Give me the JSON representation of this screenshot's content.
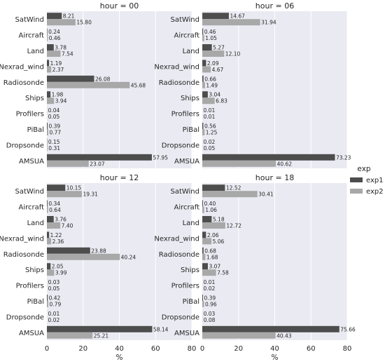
{
  "chart_data": {
    "type": "bar",
    "orientation": "horizontal",
    "facet_label": "hour",
    "xlabel": "%",
    "xlim": [
      0,
      80
    ],
    "xticks": [
      0,
      20,
      40,
      60,
      80
    ],
    "grid": true,
    "legend": {
      "title": "exp",
      "placement": "right"
    },
    "series_colors": {
      "exp1": "#4d4d4d",
      "exp2": "#a8a8a8"
    },
    "background_color": "#eaeaf2",
    "categories": [
      "SatWind",
      "Aircraft",
      "Land",
      "Nexrad_wind",
      "Radiosonde",
      "Ships",
      "Profilers",
      "PiBal",
      "Dropsonde",
      "AMSUA"
    ],
    "panels": [
      {
        "title": "hour = 00",
        "series": [
          {
            "name": "exp1",
            "values": [
              8.21,
              0.24,
              3.78,
              1.19,
              26.08,
              1.98,
              0.04,
              0.39,
              0.15,
              57.95
            ],
            "labels": [
              "8.21",
              "0.24",
              "3.78",
              "1.19",
              "26.08",
              "1.98",
              "0.04",
              "0.39",
              "0.15",
              "57.95"
            ]
          },
          {
            "name": "exp2",
            "values": [
              15.8,
              0.46,
              7.54,
              2.37,
              45.68,
              3.94,
              0.05,
              0.77,
              0.31,
              23.07
            ],
            "labels": [
              "15.80",
              "0.46",
              "7.54",
              "2.37",
              "45.68",
              "3.94",
              "0.05",
              "0.77",
              "0.31",
              "23.07"
            ]
          }
        ]
      },
      {
        "title": "hour = 06",
        "series": [
          {
            "name": "exp1",
            "values": [
              14.67,
              0.46,
              5.27,
              2.09,
              0.66,
              3.04,
              0.01,
              0.56,
              0.02,
              73.23
            ],
            "labels": [
              "14.67",
              "0.46",
              "5.27",
              "2.09",
              "0.66",
              "3.04",
              "0.01",
              "0.56",
              "0.02",
              "73.23"
            ]
          },
          {
            "name": "exp2",
            "values": [
              31.94,
              1.05,
              12.1,
              4.67,
              1.49,
              6.83,
              0.01,
              1.25,
              0.05,
              40.62
            ],
            "labels": [
              "31.94",
              "1.05",
              "12.10",
              "4.67",
              "1.49",
              "6.83",
              "0.01",
              "1.25",
              "0.05",
              "40.62"
            ]
          }
        ]
      },
      {
        "title": "hour = 12",
        "series": [
          {
            "name": "exp1",
            "values": [
              10.15,
              0.34,
              3.76,
              1.22,
              23.88,
              2.05,
              0.03,
              0.42,
              0.01,
              58.14
            ],
            "labels": [
              "10.15",
              "0.34",
              "3.76",
              "1.22",
              "23.88",
              "2.05",
              "0.03",
              "0.42",
              "0.01",
              "58.14"
            ]
          },
          {
            "name": "exp2",
            "values": [
              19.31,
              0.64,
              7.4,
              2.36,
              40.24,
              3.99,
              0.05,
              0.79,
              0.02,
              25.21
            ],
            "labels": [
              "19.31",
              "0.64",
              "7.40",
              "2.36",
              "40.24",
              "3.99",
              "0.05",
              "0.79",
              "0.02",
              "25.21"
            ]
          }
        ]
      },
      {
        "title": "hour = 18",
        "series": [
          {
            "name": "exp1",
            "values": [
              12.52,
              0.4,
              5.18,
              2.06,
              0.68,
              3.07,
              0.01,
              0.39,
              0.03,
              75.66
            ],
            "labels": [
              "12.52",
              "0.40",
              "5.18",
              "2.06",
              "0.68",
              "3.07",
              "0.01",
              "0.39",
              "0.03",
              "75.66"
            ]
          },
          {
            "name": "exp2",
            "values": [
              30.41,
              1.06,
              12.72,
              5.06,
              1.68,
              7.58,
              0.02,
              0.96,
              0.08,
              40.43
            ],
            "labels": [
              "30.41",
              "1.06",
              "12.72",
              "5.06",
              "1.68",
              "7.58",
              "0.02",
              "0.96",
              "0.08",
              "40.43"
            ]
          }
        ]
      }
    ]
  }
}
